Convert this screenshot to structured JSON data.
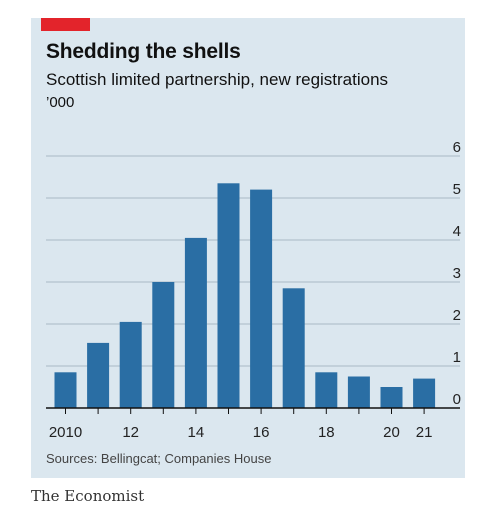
{
  "header": {
    "title": "Shedding the shells",
    "subtitle": "Scottish limited partnership, new registrations",
    "unit": "’000"
  },
  "footer": {
    "source": "Sources: Bellingcat; Companies House",
    "brand": "The Economist"
  },
  "colors": {
    "background": "#dbe7ef",
    "bar": "#2a6ea4",
    "accent": "#e3242b",
    "gridline": "#a9b8c4",
    "axis": "#111111"
  },
  "chart_data": {
    "type": "bar",
    "title": "Shedding the shells",
    "subtitle": "Scottish limited partnership, new registrations",
    "unit": "’000",
    "xlabel": "",
    "ylabel": "",
    "categories": [
      2010,
      2011,
      2012,
      2013,
      2014,
      2015,
      2016,
      2017,
      2018,
      2019,
      2020,
      2021
    ],
    "x_tick_labels": [
      {
        "year": 2010,
        "label": "2010"
      },
      {
        "year": 2012,
        "label": "12"
      },
      {
        "year": 2014,
        "label": "14"
      },
      {
        "year": 2016,
        "label": "16"
      },
      {
        "year": 2018,
        "label": "18"
      },
      {
        "year": 2020,
        "label": "20"
      },
      {
        "year": 2021,
        "label": "21"
      }
    ],
    "values": [
      0.85,
      1.55,
      2.05,
      3.0,
      4.05,
      5.35,
      5.2,
      2.85,
      0.85,
      0.75,
      0.5,
      0.7
    ],
    "ylim": [
      0,
      6
    ],
    "y_ticks": [
      0,
      1,
      2,
      3,
      4,
      5,
      6
    ],
    "y_axis_side": "right",
    "grid": true
  }
}
